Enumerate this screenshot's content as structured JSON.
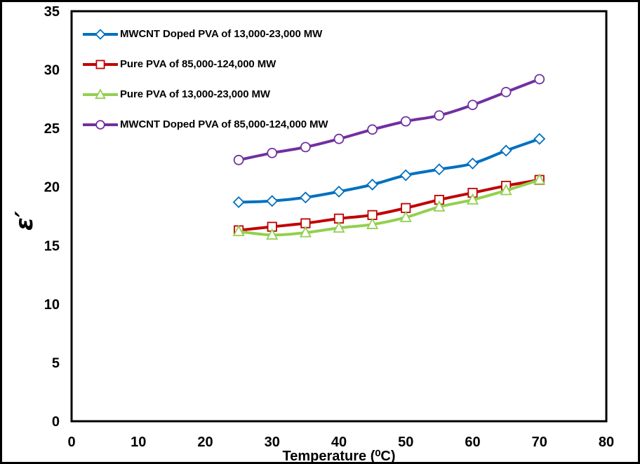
{
  "figure": {
    "background": "#ffffff",
    "border_color": "#000000"
  },
  "chart_data": {
    "type": "line",
    "title": "",
    "xlabel": "Temperature (⁰C)",
    "ylabel": "ε′",
    "xlim": [
      0,
      80
    ],
    "ylim": [
      0,
      35
    ],
    "x_ticks": [
      0,
      10,
      20,
      30,
      40,
      50,
      60,
      70,
      80
    ],
    "y_ticks": [
      0,
      5,
      10,
      15,
      20,
      25,
      30,
      35
    ],
    "grid": false,
    "legend_position": "top-left",
    "x": [
      25,
      30,
      35,
      40,
      45,
      50,
      55,
      60,
      65,
      70
    ],
    "series": [
      {
        "name": "MWCNT Doped PVA of 13,000-23,000 MW",
        "color": "#0070C0",
        "marker": "diamond",
        "values": [
          18.7,
          18.8,
          19.1,
          19.6,
          20.2,
          21.0,
          21.5,
          22.0,
          23.1,
          24.1
        ]
      },
      {
        "name": "Pure PVA of 85,000-124,000 MW",
        "color": "#C00000",
        "marker": "square",
        "values": [
          16.3,
          16.6,
          16.9,
          17.3,
          17.6,
          18.2,
          18.9,
          19.5,
          20.1,
          20.6
        ]
      },
      {
        "name": "Pure PVA of 13,000-23,000 MW",
        "color": "#92D050",
        "marker": "triangle",
        "values": [
          16.2,
          15.9,
          16.1,
          16.5,
          16.8,
          17.4,
          18.3,
          18.9,
          19.7,
          20.6
        ]
      },
      {
        "name": "MWCNT Doped PVA of 85,000-124,000 MW",
        "color": "#7030A0",
        "marker": "circle",
        "values": [
          22.3,
          22.9,
          23.4,
          24.1,
          24.9,
          25.6,
          26.1,
          27.0,
          28.1,
          29.2
        ]
      }
    ]
  }
}
